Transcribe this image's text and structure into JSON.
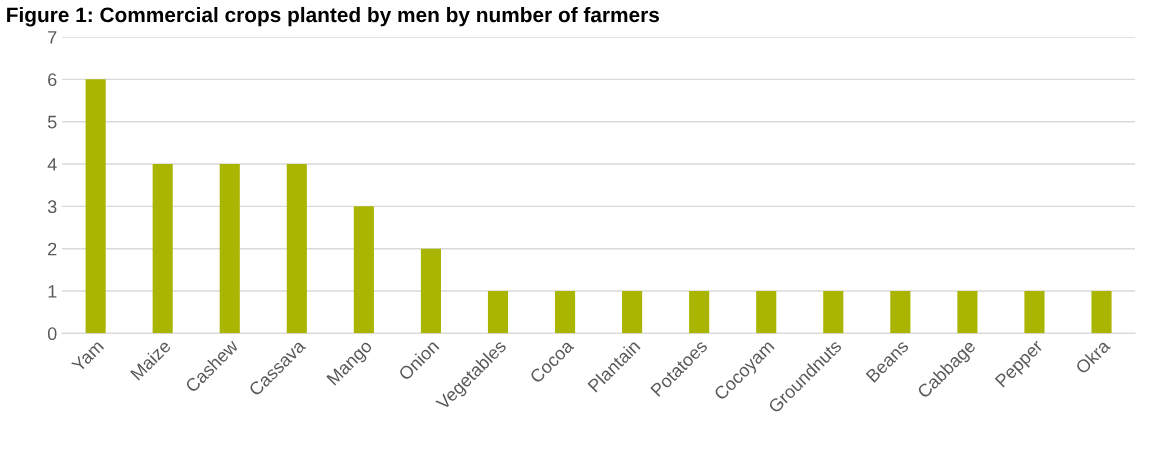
{
  "chart_data": {
    "type": "bar",
    "title": "Figure 1: Commercial crops planted by men by number of farmers",
    "categories": [
      "Yam",
      "Maize",
      "Cashew",
      "Cassava",
      "Mango",
      "Onion",
      "Vegetables",
      "Cocoa",
      "Plantain",
      "Potatoes",
      "Cocoyam",
      "Groundnuts",
      "Beans",
      "Cabbage",
      "Pepper",
      "Okra"
    ],
    "values": [
      6,
      4,
      4,
      4,
      3,
      2,
      1,
      1,
      1,
      1,
      1,
      1,
      1,
      1,
      1,
      1
    ],
    "color": "#a9b500",
    "ylim": [
      0,
      7
    ],
    "yticks": [
      0,
      1,
      2,
      3,
      4,
      5,
      6,
      7
    ],
    "grid": "y",
    "legend": false
  }
}
